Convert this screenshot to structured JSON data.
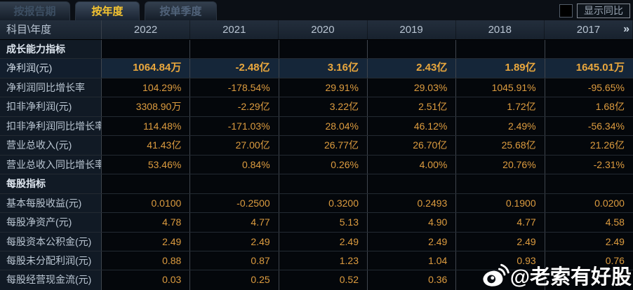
{
  "tabs": [
    {
      "label": "按报告期",
      "active": false
    },
    {
      "label": "按年度",
      "active": true
    },
    {
      "label": "按单季度",
      "active": false
    }
  ],
  "show_yoy": {
    "label": "显示同比",
    "checked": false
  },
  "table": {
    "corner_label": "科目\\年度",
    "years": [
      "2022",
      "2021",
      "2020",
      "2019",
      "2018",
      "2017"
    ],
    "more_symbol": "»",
    "rows": [
      {
        "type": "section",
        "label": "成长能力指标",
        "values": [
          "",
          "",
          "",
          "",
          "",
          ""
        ]
      },
      {
        "type": "highlight",
        "label": "净利润(元)",
        "values": [
          "1064.84万",
          "-2.48亿",
          "3.16亿",
          "2.43亿",
          "1.89亿",
          "1645.01万"
        ]
      },
      {
        "type": "data",
        "label": "净利润同比增长率",
        "values": [
          "104.29%",
          "-178.54%",
          "29.91%",
          "29.03%",
          "1045.91%",
          "-95.65%"
        ]
      },
      {
        "type": "data",
        "label": "扣非净利润(元)",
        "values": [
          "3308.90万",
          "-2.29亿",
          "3.22亿",
          "2.51亿",
          "1.72亿",
          "1.68亿"
        ]
      },
      {
        "type": "data",
        "label": "扣非净利润同比增长率",
        "values": [
          "114.48%",
          "-171.03%",
          "28.04%",
          "46.12%",
          "2.49%",
          "-56.34%"
        ]
      },
      {
        "type": "data",
        "label": "营业总收入(元)",
        "values": [
          "41.43亿",
          "27.00亿",
          "26.77亿",
          "26.70亿",
          "25.68亿",
          "21.26亿"
        ]
      },
      {
        "type": "data",
        "label": "营业总收入同比增长率",
        "values": [
          "53.46%",
          "0.84%",
          "0.26%",
          "4.00%",
          "20.76%",
          "-2.31%"
        ]
      },
      {
        "type": "section",
        "label": "每股指标",
        "values": [
          "",
          "",
          "",
          "",
          "",
          ""
        ]
      },
      {
        "type": "data",
        "label": "基本每股收益(元)",
        "values": [
          "0.0100",
          "-0.2500",
          "0.3200",
          "0.2493",
          "0.1900",
          "0.0200"
        ]
      },
      {
        "type": "data",
        "label": "每股净资产(元)",
        "values": [
          "4.78",
          "4.77",
          "5.13",
          "4.90",
          "4.77",
          "4.58"
        ]
      },
      {
        "type": "data",
        "label": "每股资本公积金(元)",
        "values": [
          "2.49",
          "2.49",
          "2.49",
          "2.49",
          "2.49",
          "2.49"
        ]
      },
      {
        "type": "data",
        "label": "每股未分配利润(元)",
        "values": [
          "0.88",
          "0.87",
          "1.23",
          "1.04",
          "0.93",
          "0.76"
        ]
      },
      {
        "type": "data",
        "label": "每股经营现金流(元)",
        "values": [
          "0.03",
          "0.25",
          "0.52",
          "0.36",
          "",
          ""
        ]
      }
    ]
  },
  "watermark": {
    "text": "@老索有好股"
  },
  "colors": {
    "active_tab_text": "#f6c531",
    "value_text": "#dd9c3f",
    "highlight_row_bg": "#152639",
    "header_bg": "#1c2734",
    "label_cell_bg": "#111a25",
    "value_cell_bg": "#04070b",
    "watermark_text": "#ffffff"
  }
}
